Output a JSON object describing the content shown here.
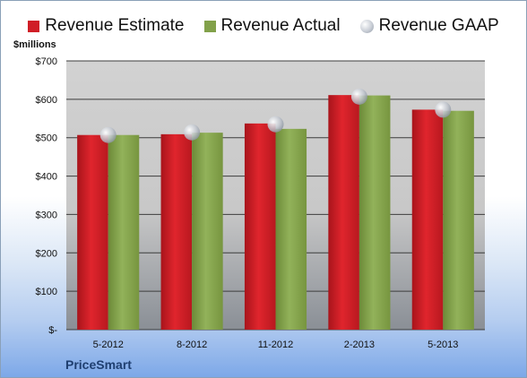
{
  "legend": {
    "estimate": "Revenue Estimate",
    "actual": "Revenue Actual",
    "gaap": "Revenue GAAP"
  },
  "unit_label": "$millions",
  "company": "PriceSmart",
  "colors": {
    "estimate": "#d01e26",
    "actual": "#82a14a",
    "gaap": "#b9bec7",
    "plot_bg": "#d3d3d3"
  },
  "chart_data": {
    "type": "bar",
    "categories": [
      "5-2012",
      "8-2012",
      "11-2012",
      "2-2013",
      "5-2013"
    ],
    "series": [
      {
        "name": "Revenue Estimate",
        "values": [
          507,
          509,
          537,
          611,
          573
        ]
      },
      {
        "name": "Revenue Actual",
        "values": [
          507,
          513,
          523,
          610,
          570
        ]
      },
      {
        "name": "Revenue GAAP",
        "values": [
          507,
          514,
          535,
          607,
          573
        ]
      }
    ],
    "ylim": [
      0,
      700
    ],
    "yticks": [
      {
        "value": 0,
        "label": "$-"
      },
      {
        "value": 100,
        "label": "$100"
      },
      {
        "value": 200,
        "label": "$200"
      },
      {
        "value": 300,
        "label": "$300"
      },
      {
        "value": 400,
        "label": "$400"
      },
      {
        "value": 500,
        "label": "$500"
      },
      {
        "value": 600,
        "label": "$600"
      },
      {
        "value": 700,
        "label": "$700"
      }
    ],
    "grid": true,
    "legend_position": "top"
  }
}
